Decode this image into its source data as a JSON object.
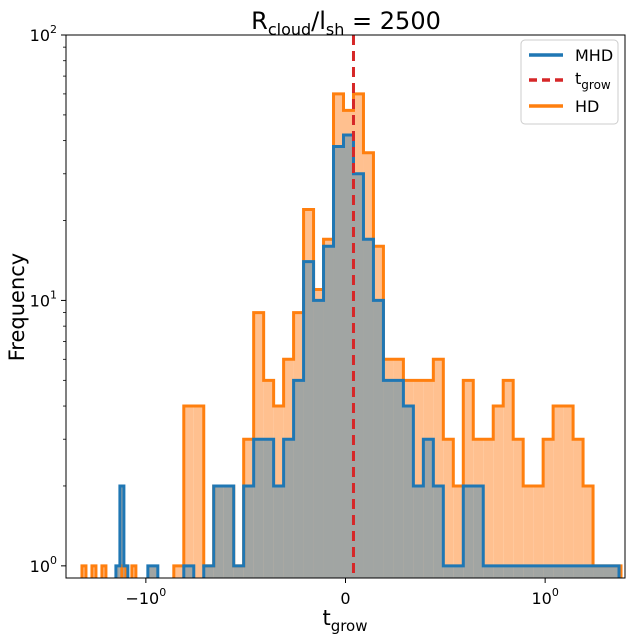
{
  "chart_data": {
    "type": "histogram",
    "title": {
      "main": "R",
      "sub1": "cloud",
      "mid": "/l",
      "sub2": "sh",
      "tail": " = 2500"
    },
    "xlabel": {
      "main": "t",
      "sub": "grow"
    },
    "ylabel": "Frequency",
    "yscale": "log",
    "ylim": [
      0.9,
      100
    ],
    "xscale": "symlog",
    "xlim": [
      -1.4,
      1.4
    ],
    "x_ticks": [
      {
        "value": -1,
        "label": {
          "main": "−10",
          "sup": "0"
        }
      },
      {
        "value": 0,
        "label": {
          "main": "0",
          "sup": ""
        }
      },
      {
        "value": 1,
        "label": {
          "main": "10",
          "sup": "0"
        }
      }
    ],
    "y_ticks": [
      {
        "value": 1,
        "label": {
          "main": "10",
          "sup": "0"
        }
      },
      {
        "value": 10,
        "label": {
          "main": "10",
          "sup": "1"
        }
      },
      {
        "value": 100,
        "label": {
          "main": "10",
          "sup": "2"
        }
      }
    ],
    "vline": {
      "x": 0.04
    },
    "legend": {
      "position": "top-right",
      "entries": [
        {
          "label": {
            "main": "MHD",
            "sub": ""
          },
          "color": "#1f77b4",
          "style": "solid"
        },
        {
          "label": {
            "main": "t",
            "sub": "grow"
          },
          "color": "#d62728",
          "style": "dashed"
        },
        {
          "label": {
            "main": "HD",
            "sub": ""
          },
          "color": "#ff7f0e",
          "style": "solid"
        }
      ]
    },
    "series": [
      {
        "name": "HD",
        "color": "#ff7f0e",
        "fill": "#ffc08f",
        "bins": [
          [
            -1.32,
            -1.3,
            1
          ],
          [
            -1.27,
            -1.25,
            1
          ],
          [
            -1.22,
            -1.2,
            1
          ],
          [
            -1.12,
            -1.1,
            1
          ],
          [
            -1.07,
            -1.05,
            1
          ],
          [
            -0.86,
            -0.81,
            1
          ],
          [
            -0.81,
            -0.76,
            4
          ],
          [
            -0.76,
            -0.71,
            4
          ],
          [
            -0.71,
            -0.66,
            1
          ],
          [
            -0.66,
            -0.61,
            2
          ],
          [
            -0.61,
            -0.56,
            2
          ],
          [
            -0.56,
            -0.51,
            1
          ],
          [
            -0.51,
            -0.46,
            3
          ],
          [
            -0.46,
            -0.41,
            9
          ],
          [
            -0.41,
            -0.36,
            5
          ],
          [
            -0.36,
            -0.31,
            4
          ],
          [
            -0.31,
            -0.26,
            6
          ],
          [
            -0.26,
            -0.21,
            9
          ],
          [
            -0.21,
            -0.16,
            22
          ],
          [
            -0.16,
            -0.11,
            11
          ],
          [
            -0.11,
            -0.06,
            17
          ],
          [
            -0.06,
            -0.01,
            60
          ],
          [
            -0.01,
            0.04,
            52
          ],
          [
            0.04,
            0.09,
            60
          ],
          [
            0.09,
            0.14,
            36
          ],
          [
            0.14,
            0.19,
            16
          ],
          [
            0.19,
            0.24,
            6
          ],
          [
            0.24,
            0.29,
            6
          ],
          [
            0.29,
            0.34,
            5
          ],
          [
            0.34,
            0.39,
            5
          ],
          [
            0.39,
            0.44,
            5
          ],
          [
            0.44,
            0.49,
            6
          ],
          [
            0.49,
            0.54,
            3
          ],
          [
            0.54,
            0.59,
            2
          ],
          [
            0.59,
            0.64,
            5
          ],
          [
            0.64,
            0.69,
            3
          ],
          [
            0.69,
            0.74,
            3
          ],
          [
            0.74,
            0.79,
            4
          ],
          [
            0.79,
            0.84,
            5
          ],
          [
            0.84,
            0.89,
            3
          ],
          [
            0.89,
            0.94,
            2
          ],
          [
            0.94,
            0.99,
            2
          ],
          [
            0.99,
            1.04,
            3
          ],
          [
            1.04,
            1.09,
            4
          ],
          [
            1.09,
            1.14,
            4
          ],
          [
            1.14,
            1.19,
            3
          ],
          [
            1.19,
            1.24,
            2
          ],
          [
            1.24,
            1.29,
            1
          ],
          [
            1.29,
            1.34,
            1
          ],
          [
            1.34,
            1.38,
            1
          ]
        ]
      },
      {
        "name": "MHD",
        "color": "#1f77b4",
        "fill": "#a1a5a3",
        "bins": [
          [
            -1.15,
            -1.13,
            1
          ],
          [
            -1.13,
            -1.11,
            2
          ],
          [
            -1.11,
            -1.09,
            1
          ],
          [
            -0.99,
            -0.94,
            1
          ],
          [
            -0.81,
            -0.76,
            1
          ],
          [
            -0.71,
            -0.66,
            1
          ],
          [
            -0.66,
            -0.61,
            2
          ],
          [
            -0.61,
            -0.56,
            2
          ],
          [
            -0.56,
            -0.51,
            1
          ],
          [
            -0.51,
            -0.46,
            2
          ],
          [
            -0.46,
            -0.41,
            3
          ],
          [
            -0.41,
            -0.36,
            3
          ],
          [
            -0.36,
            -0.31,
            2
          ],
          [
            -0.31,
            -0.26,
            3
          ],
          [
            -0.26,
            -0.21,
            5
          ],
          [
            -0.21,
            -0.16,
            14
          ],
          [
            -0.16,
            -0.11,
            10
          ],
          [
            -0.11,
            -0.06,
            16
          ],
          [
            -0.06,
            -0.01,
            38
          ],
          [
            -0.01,
            0.04,
            42
          ],
          [
            0.04,
            0.09,
            30
          ],
          [
            0.09,
            0.14,
            17
          ],
          [
            0.14,
            0.19,
            10
          ],
          [
            0.19,
            0.24,
            5
          ],
          [
            0.24,
            0.29,
            5
          ],
          [
            0.29,
            0.34,
            4
          ],
          [
            0.34,
            0.39,
            2
          ],
          [
            0.39,
            0.44,
            3
          ],
          [
            0.44,
            0.49,
            2
          ],
          [
            0.49,
            0.54,
            1
          ],
          [
            0.54,
            0.59,
            1
          ],
          [
            0.59,
            0.64,
            2
          ],
          [
            0.64,
            0.69,
            2
          ],
          [
            0.69,
            0.74,
            1
          ],
          [
            0.74,
            0.79,
            1
          ],
          [
            0.79,
            0.84,
            1
          ],
          [
            0.84,
            0.89,
            1
          ],
          [
            0.89,
            0.94,
            1
          ],
          [
            0.94,
            0.99,
            1
          ],
          [
            0.99,
            1.04,
            1
          ],
          [
            1.04,
            1.09,
            1
          ],
          [
            1.09,
            1.14,
            1
          ],
          [
            1.14,
            1.19,
            1
          ],
          [
            1.19,
            1.24,
            1
          ],
          [
            1.24,
            1.29,
            1
          ],
          [
            1.29,
            1.34,
            1
          ],
          [
            1.34,
            1.37,
            1
          ]
        ]
      }
    ]
  }
}
